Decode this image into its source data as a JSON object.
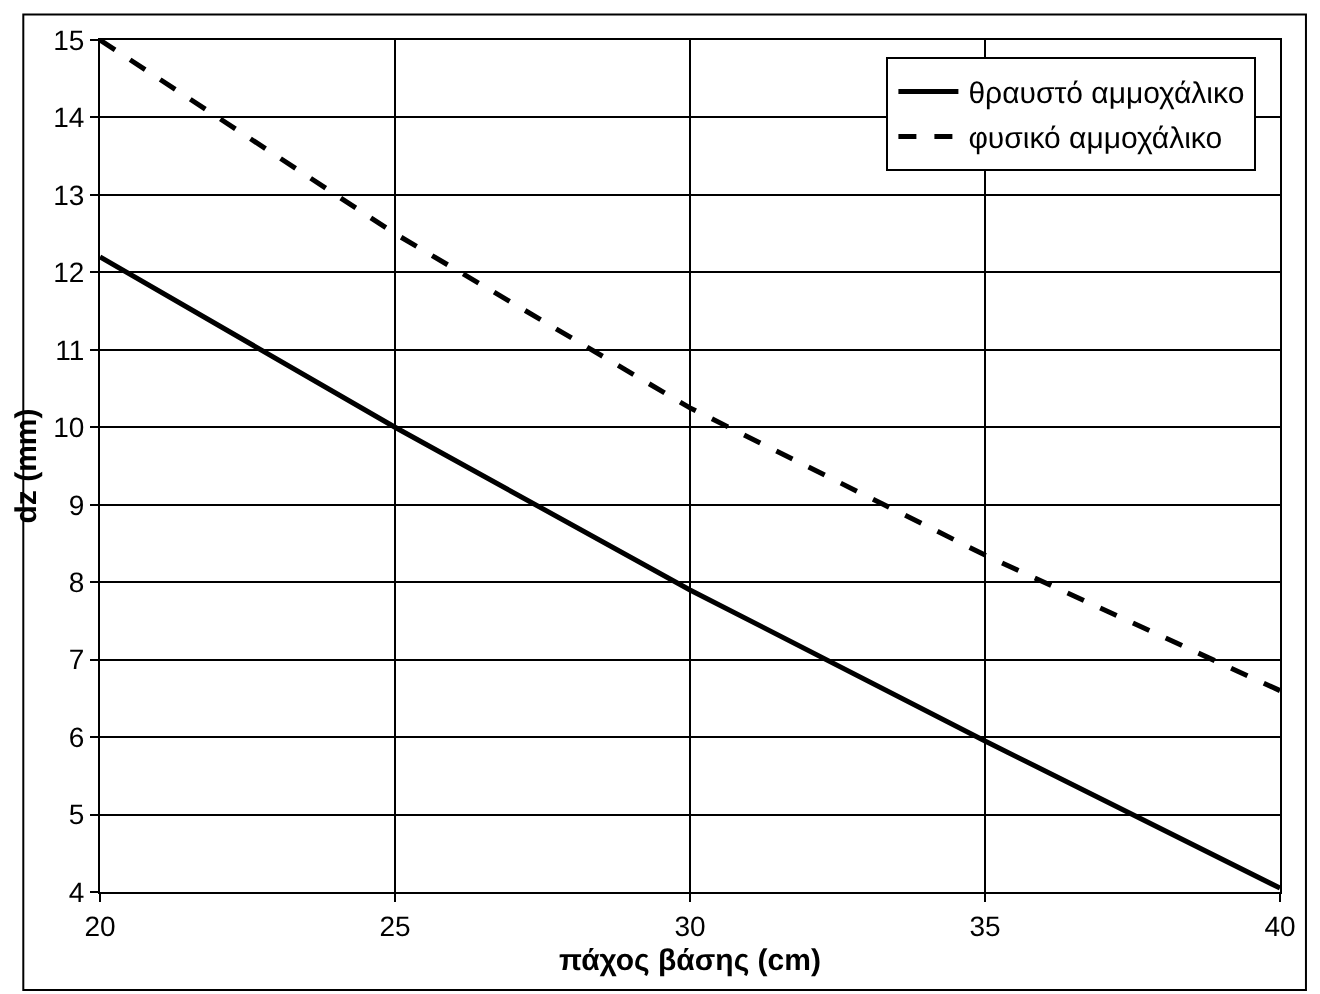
{
  "chart_data": {
    "type": "line",
    "xlabel": "πάχος βάσης (cm)",
    "ylabel": "dz (mm)",
    "x": [
      20,
      25,
      30,
      35,
      40
    ],
    "series": [
      {
        "name": "θραυστό αμμοχάλικο",
        "color": "#000000",
        "line_style": "solid",
        "values": [
          12.2,
          10.0,
          7.9,
          5.95,
          4.05
        ]
      },
      {
        "name": "φυσικό αμμοχάλικο",
        "color": "#000000",
        "line_style": "dashed",
        "values": [
          15.0,
          12.5,
          10.25,
          8.35,
          6.6
        ]
      }
    ],
    "xlim": [
      20,
      40
    ],
    "xticks": [
      20,
      25,
      30,
      35,
      40
    ],
    "ylim": [
      4,
      15
    ],
    "yticks": [
      4,
      5,
      6,
      7,
      8,
      9,
      10,
      11,
      12,
      13,
      14,
      15
    ],
    "grid": true,
    "legend": "top right",
    "marker": "none"
  }
}
